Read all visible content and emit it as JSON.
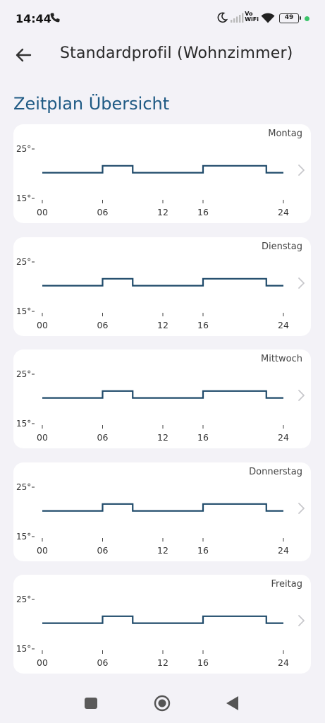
{
  "status_bar": {
    "time": "14:44",
    "battery": "49",
    "vowifi_top": "Vo",
    "vowifi_bottom": "WiFi",
    "icons": [
      "phone-icon",
      "moon-icon",
      "signal-icon",
      "wifi-icon",
      "battery-icon"
    ]
  },
  "app_bar": {
    "title": "Standardprofil (Wohnzimmer)",
    "back_icon": "arrow-left-icon"
  },
  "section_title": "Zeitplan Übersicht",
  "colors": {
    "accent": "#1f5a84",
    "line": "#1f4a6a",
    "background": "#f3f2f7",
    "card": "#ffffff"
  },
  "days": [
    {
      "label": "Montag"
    },
    {
      "label": "Dienstag"
    },
    {
      "label": "Mittwoch"
    },
    {
      "label": "Donnerstag"
    },
    {
      "label": "Freitag"
    }
  ],
  "chart_data": {
    "type": "line",
    "y_ticks": [
      "25°",
      "15°"
    ],
    "x_ticks": [
      "00",
      "06",
      "12",
      "16",
      "24"
    ],
    "ylim": [
      15,
      25
    ],
    "xlim": [
      0,
      24
    ],
    "series": [
      {
        "x": [
          0,
          6,
          6,
          9,
          9,
          16,
          16,
          22.3,
          22.3,
          24
        ],
        "y": [
          20.2,
          20.2,
          21.6,
          21.6,
          20.2,
          20.2,
          21.6,
          21.6,
          20.2,
          20.2
        ]
      }
    ]
  },
  "nav_bar": {
    "icons": [
      "square-home-icon",
      "circle-recents-icon",
      "triangle-back-icon"
    ]
  }
}
